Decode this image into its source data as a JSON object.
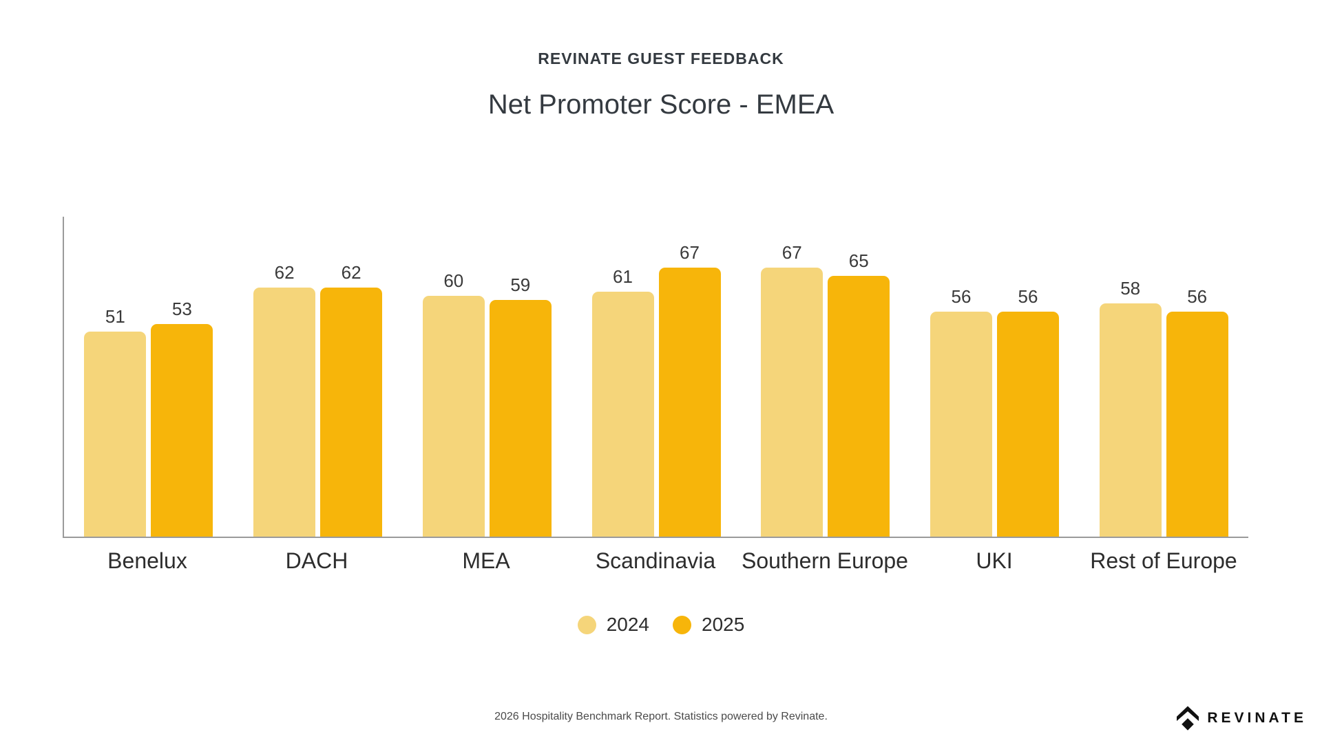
{
  "header": {
    "eyebrow": "REVINATE GUEST FEEDBACK",
    "title": "Net Promoter Score - EMEA"
  },
  "chart_data": {
    "type": "bar",
    "title": "Net Promoter Score - EMEA",
    "subtitle": "REVINATE GUEST FEEDBACK",
    "categories": [
      "Benelux",
      "DACH",
      "MEA",
      "Scandinavia",
      "Southern Europe",
      "UKI",
      "Rest of Europe"
    ],
    "series": [
      {
        "name": "2024",
        "color": "#F5D57A",
        "values": [
          51,
          62,
          60,
          61,
          67,
          56,
          58
        ]
      },
      {
        "name": "2025",
        "color": "#F7B50A",
        "values": [
          53,
          62,
          59,
          67,
          65,
          56,
          56
        ]
      }
    ],
    "xlabel": "",
    "ylabel": "",
    "ylim": [
      0,
      80
    ],
    "grid": false,
    "value_labels": true,
    "legend_position": "bottom",
    "axis_color": "#9a9a9a"
  },
  "legend": {
    "items": [
      {
        "label": "2024",
        "color": "#F5D57A"
      },
      {
        "label": "2025",
        "color": "#F7B50A"
      }
    ]
  },
  "footer": {
    "text": "2026 Hospitality Benchmark Report. Statistics powered by Revinate."
  },
  "logo": {
    "wordmark": "REVINATE",
    "color": "#111111"
  }
}
